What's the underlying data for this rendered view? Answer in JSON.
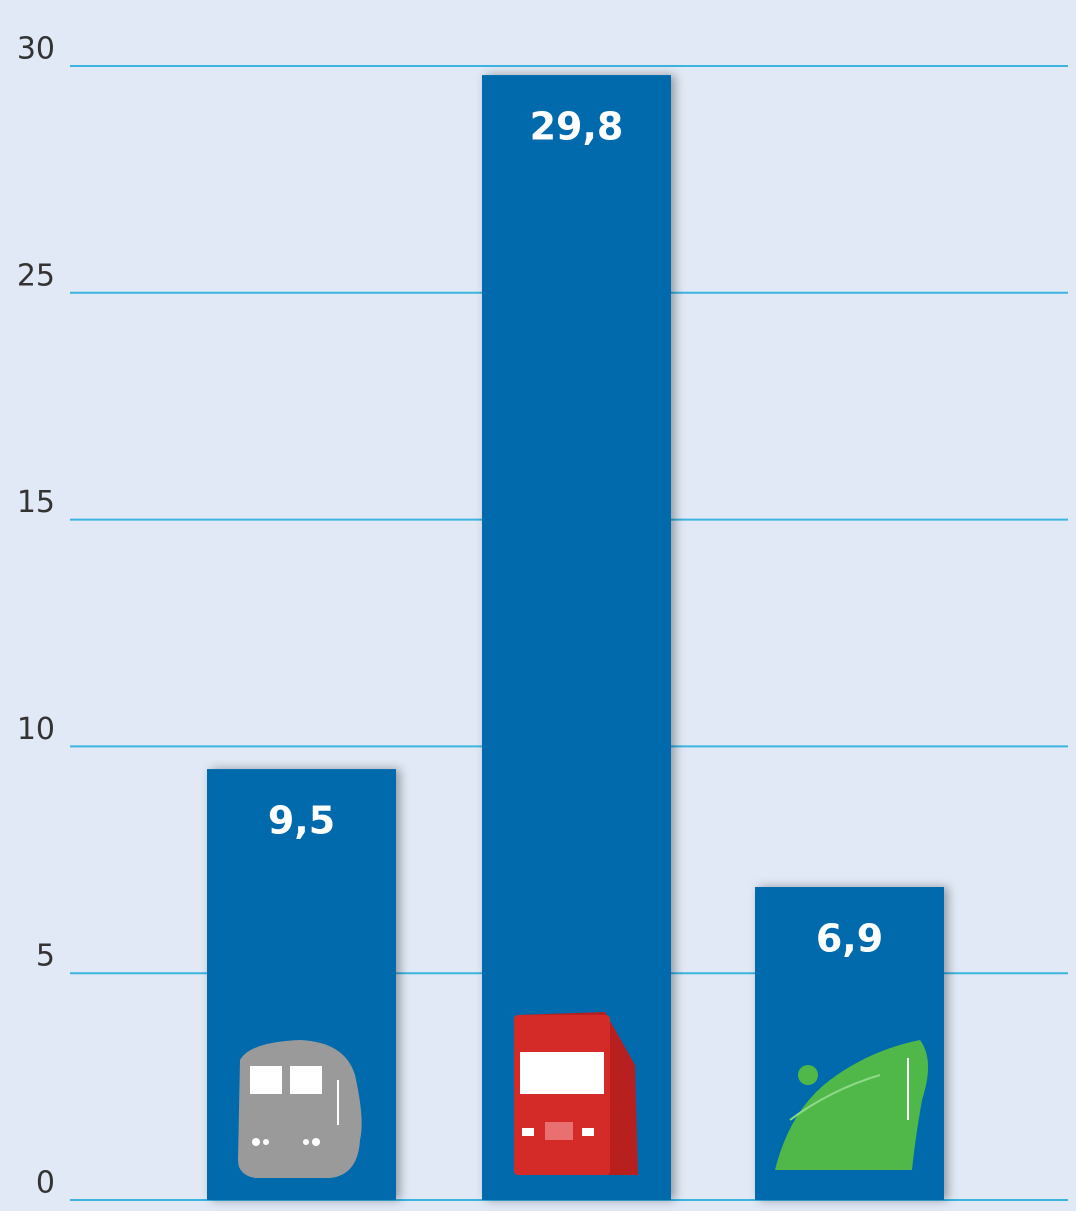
{
  "chart_data": {
    "type": "bar",
    "values": [
      9.5,
      29.8,
      6.9
    ],
    "value_labels": [
      "9,5",
      "29,8",
      "6,9"
    ],
    "color": "#006aad",
    "ylim": [
      0,
      30
    ],
    "yticks": [
      0,
      5,
      10,
      15,
      25,
      30
    ],
    "grid": true
  }
}
